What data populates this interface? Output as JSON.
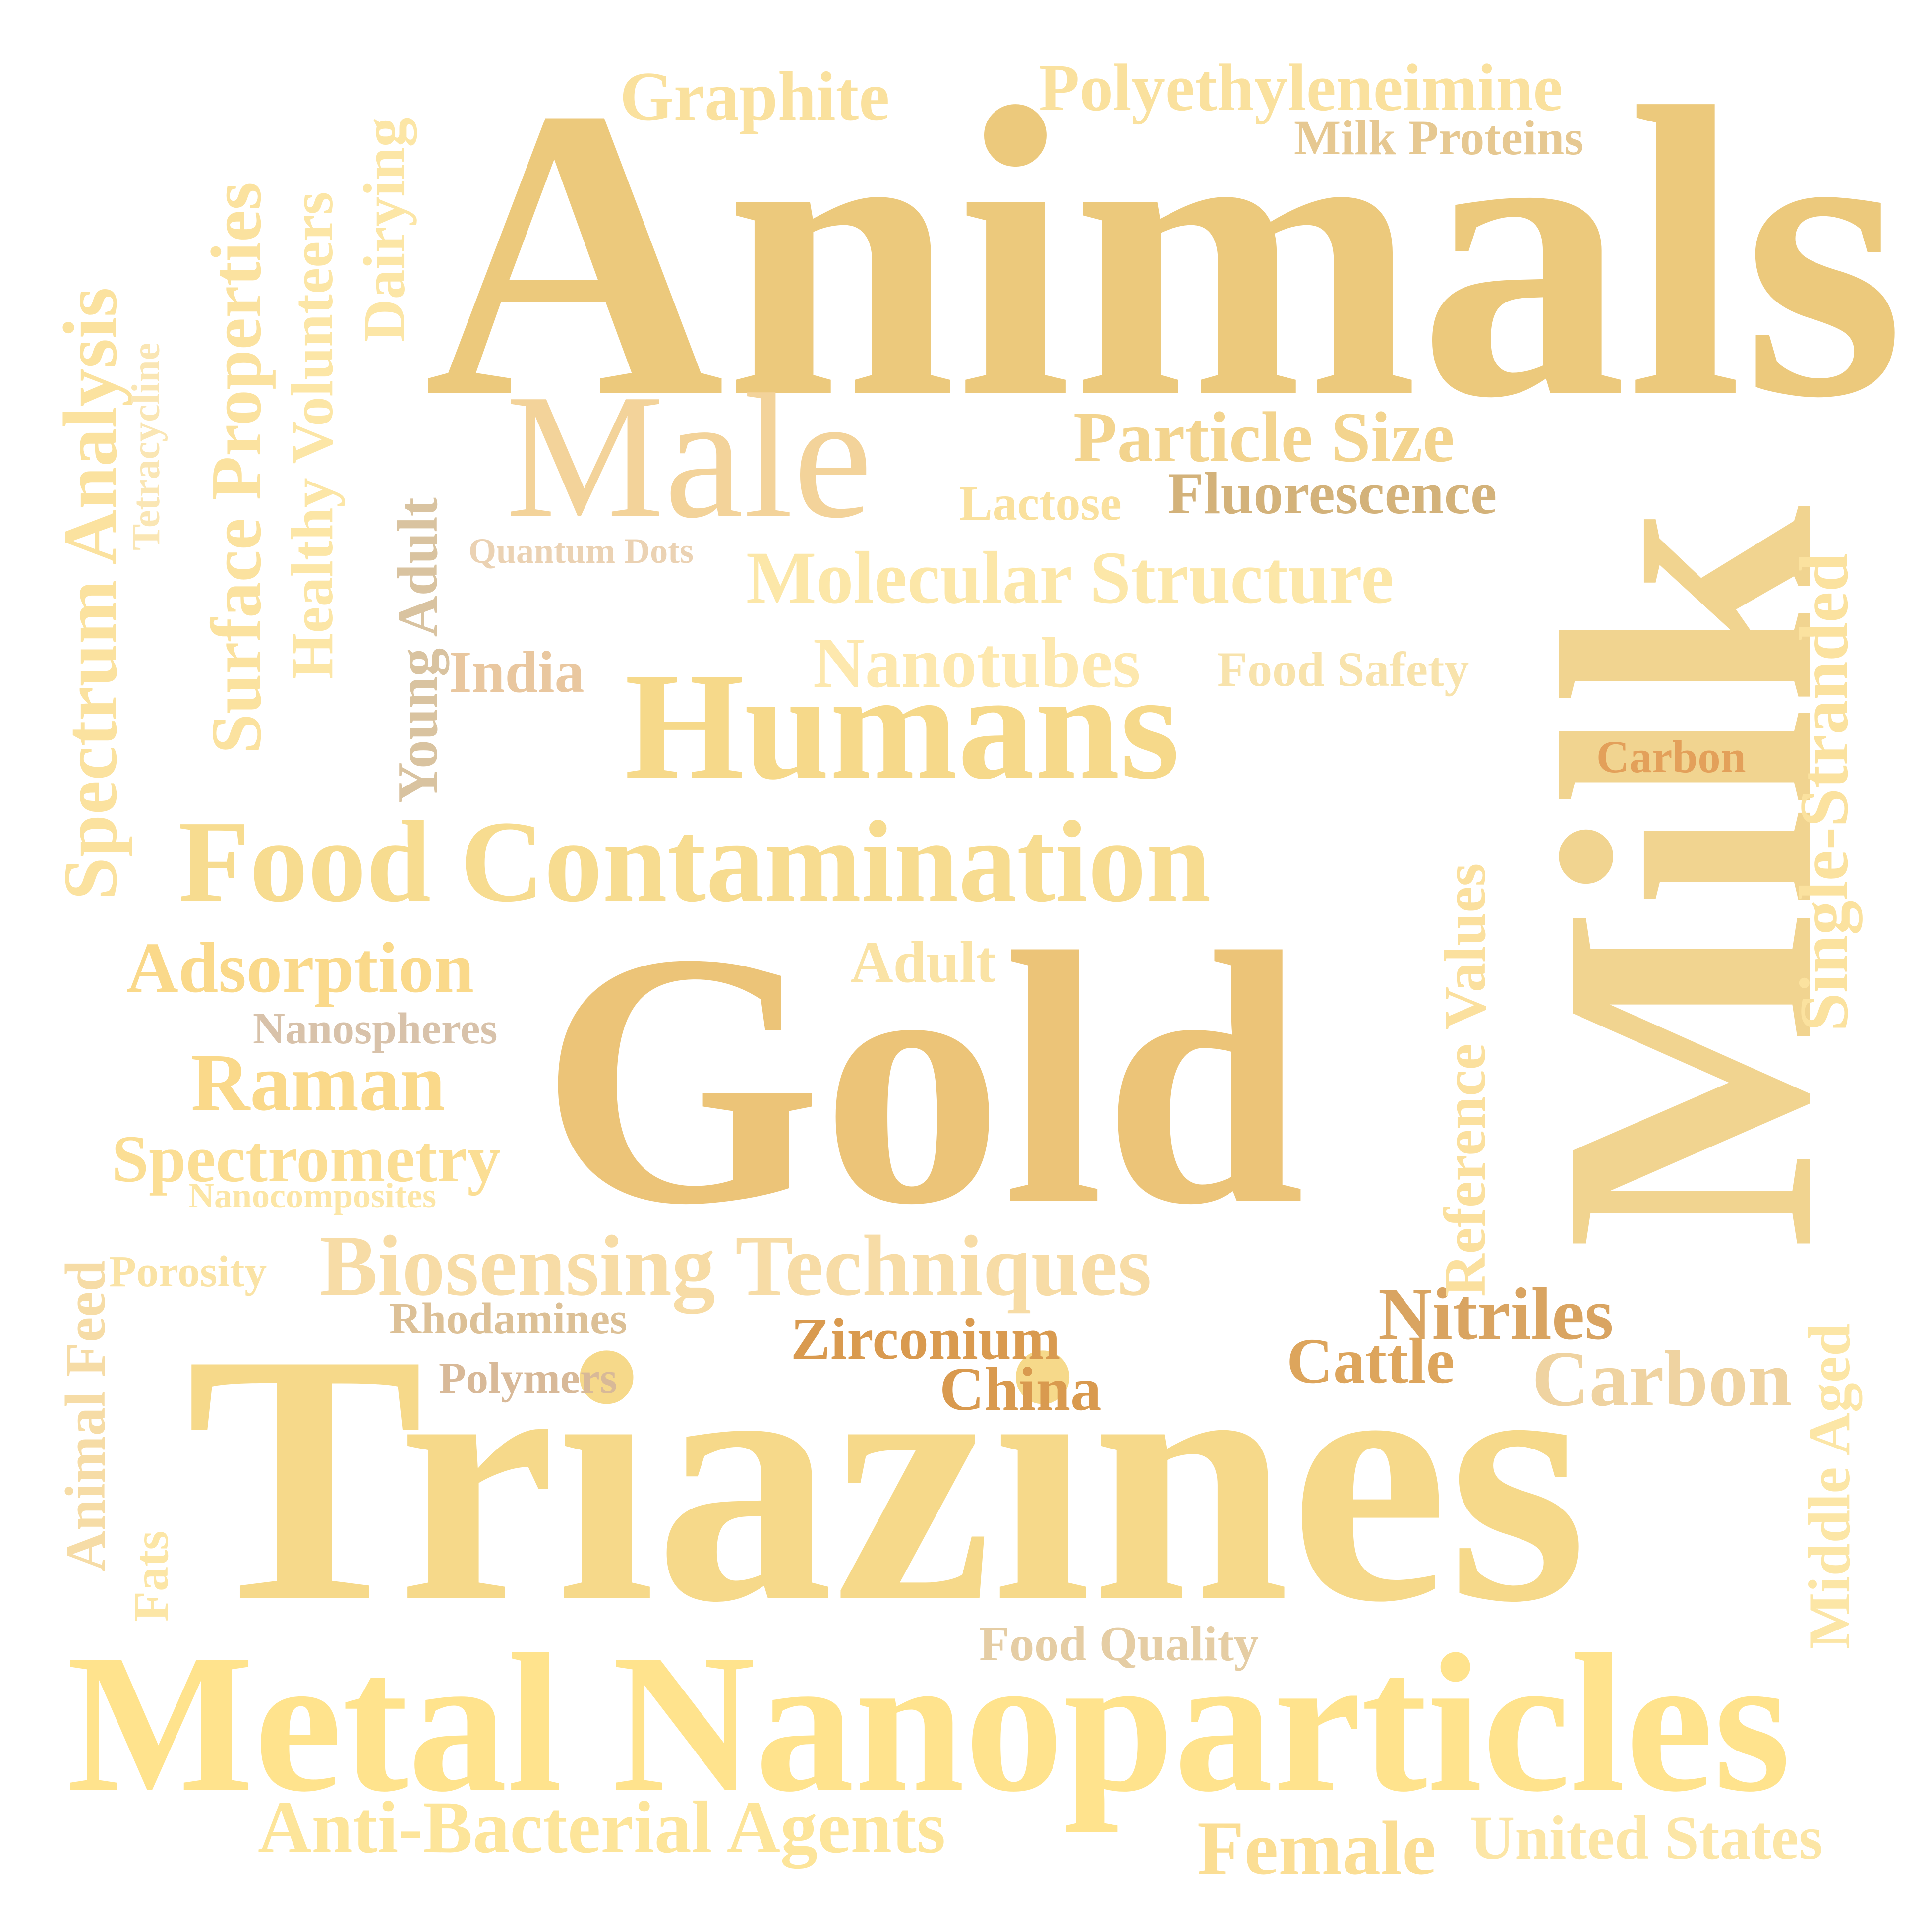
{
  "words": [
    {
      "key": "animals",
      "text": "Animals",
      "color": "#ECC97C"
    },
    {
      "key": "milk",
      "text": "Milk",
      "color": "#F1D490"
    },
    {
      "key": "gold",
      "text": "Gold",
      "color": "#ECC478"
    },
    {
      "key": "triazines",
      "text": "Triazines",
      "color": "#F6D98A"
    },
    {
      "key": "metal_nanoparticles",
      "text": "Metal Nanoparticles",
      "color": "#FFE38D"
    },
    {
      "key": "male",
      "text": "Male",
      "color": "#F3D39A"
    },
    {
      "key": "humans",
      "text": "Humans",
      "color": "#F6D98A"
    },
    {
      "key": "food_contamination",
      "text": "Food Contamination",
      "color": "#F7DC90"
    },
    {
      "key": "graphite",
      "text": "Graphite",
      "color": "#FAE19E"
    },
    {
      "key": "polyethyleneimine",
      "text": "Polyethyleneimine",
      "color": "#FAE19E"
    },
    {
      "key": "milk_proteins",
      "text": "Milk Proteins",
      "color": "#E6C891"
    },
    {
      "key": "particle_size",
      "text": "Particle Size",
      "color": "#F3D48E"
    },
    {
      "key": "fluorescence",
      "text": "Fluorescence",
      "color": "#D3B27A"
    },
    {
      "key": "lactose",
      "text": "Lactose",
      "color": "#FAE19E"
    },
    {
      "key": "quantum_dots",
      "text": "Quantum Dots",
      "color": "#EBD2B3"
    },
    {
      "key": "molecular_structure",
      "text": "Molecular Structure",
      "color": "#FCE7A8"
    },
    {
      "key": "nanotubes",
      "text": "Nanotubes",
      "color": "#FDE8AE"
    },
    {
      "key": "food_safety",
      "text": "Food Safety",
      "color": "#F8E3AC"
    },
    {
      "key": "india",
      "text": "India",
      "color": "#E9C79F"
    },
    {
      "key": "carbon_small",
      "text": "Carbon",
      "color": "#E3A05A"
    },
    {
      "key": "adsorption",
      "text": "Adsorption",
      "color": "#FAD98A"
    },
    {
      "key": "adult",
      "text": "Adult",
      "color": "#FAE3A5"
    },
    {
      "key": "nanospheres",
      "text": "Nanospheres",
      "color": "#D8C2AA"
    },
    {
      "key": "raman",
      "text": "Raman",
      "color": "#FAD98A"
    },
    {
      "key": "spectrometry",
      "text": "Spectrometry",
      "color": "#FBDE94"
    },
    {
      "key": "nanocomposites",
      "text": "Nanocomposites",
      "color": "#FCE6A6"
    },
    {
      "key": "porosity",
      "text": "Porosity",
      "color": "#FAE3A5"
    },
    {
      "key": "biosensing_techniques",
      "text": "Biosensing Techniques",
      "color": "#F7DCA6"
    },
    {
      "key": "rhodamines",
      "text": "Rhodamines",
      "color": "#DCC096"
    },
    {
      "key": "polymers",
      "text": "Polymers",
      "color": "#D8B998"
    },
    {
      "key": "zirconium",
      "text": "Zirconium",
      "color": "#D99A4F"
    },
    {
      "key": "china",
      "text": "China",
      "color": "#D99A4F"
    },
    {
      "key": "nitriles",
      "text": "Nitriles",
      "color": "#D9A461"
    },
    {
      "key": "cattle",
      "text": "Cattle",
      "color": "#DDA55C"
    },
    {
      "key": "carbon_large",
      "text": "Carbon",
      "color": "#EFD3A1"
    },
    {
      "key": "food_quality",
      "text": "Food Quality",
      "color": "#E5CDA4"
    },
    {
      "key": "anti_bacterial_agents",
      "text": "Anti-Bacterial Agents",
      "color": "#FDE59A"
    },
    {
      "key": "female",
      "text": "Female",
      "color": "#FBDE94"
    },
    {
      "key": "united_states",
      "text": "United States",
      "color": "#FCE6A6"
    },
    {
      "key": "spectrum_analysis",
      "text": "Spectrum Analysis",
      "color": "#FBE29F"
    },
    {
      "key": "tetracycline",
      "text": "Tetracycline",
      "color": "#FAE6B4"
    },
    {
      "key": "surface_properties",
      "text": "Surface Properties",
      "color": "#FBE29F"
    },
    {
      "key": "healthy_volunteers",
      "text": "Healthy Volunteers",
      "color": "#FCE6A6"
    },
    {
      "key": "dairying",
      "text": "Dairying",
      "color": "#FCE6A6"
    },
    {
      "key": "young_adult",
      "text": "Young Adult",
      "color": "#D9C3A0"
    },
    {
      "key": "reference_values",
      "text": "Reference Values",
      "color": "#FBE09E"
    },
    {
      "key": "single_stranded",
      "text": "Single-Stranded",
      "color": "#FBE29F"
    },
    {
      "key": "middle_aged",
      "text": "Middle Aged",
      "color": "#FCE6A6"
    },
    {
      "key": "animal_feed",
      "text": "Animal Feed",
      "color": "#F6DCA6"
    },
    {
      "key": "fats",
      "text": "Fats",
      "color": "#FCE6A6"
    }
  ]
}
